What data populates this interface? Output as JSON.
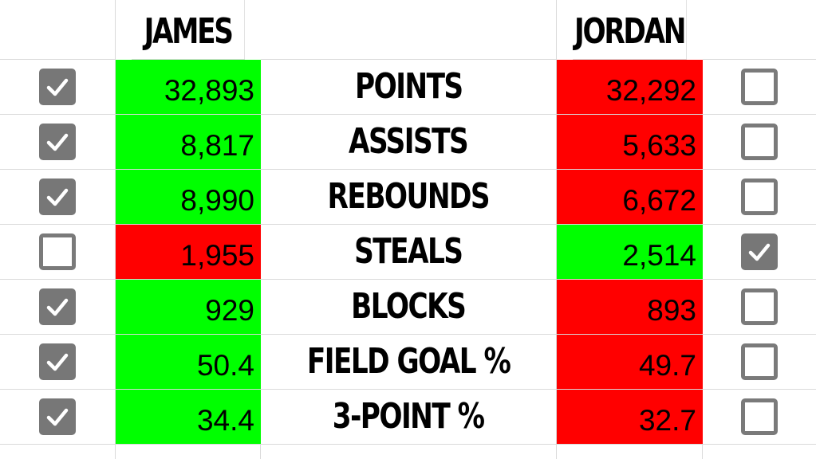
{
  "players": {
    "left": {
      "name": "JAMES"
    },
    "right": {
      "name": "JORDAN"
    }
  },
  "colors": {
    "win": "#00ff00",
    "lose": "#ff0000",
    "checkbox": "#777777"
  },
  "stats": [
    {
      "label": "POINTS",
      "left": "32,893",
      "right": "32,292",
      "left_checked": true,
      "right_checked": false
    },
    {
      "label": "ASSISTS",
      "left": "8,817",
      "right": "5,633",
      "left_checked": true,
      "right_checked": false
    },
    {
      "label": "REBOUNDS",
      "left": "8,990",
      "right": "6,672",
      "left_checked": true,
      "right_checked": false
    },
    {
      "label": "STEALS",
      "left": "1,955",
      "right": "2,514",
      "left_checked": false,
      "right_checked": true
    },
    {
      "label": "BLOCKS",
      "left": "929",
      "right": "893",
      "left_checked": true,
      "right_checked": false
    },
    {
      "label": "FIELD GOAL %",
      "left": "50.4",
      "right": "49.7",
      "left_checked": true,
      "right_checked": false
    },
    {
      "label": "3-POINT %",
      "left": "34.4",
      "right": "32.7",
      "left_checked": true,
      "right_checked": false
    }
  ]
}
